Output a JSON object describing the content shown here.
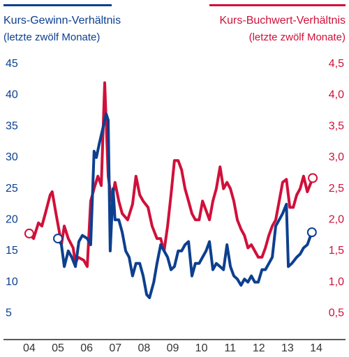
{
  "chart_data": {
    "type": "line",
    "xlim": [
      2003.48,
      2015.4
    ],
    "xticks": [
      {
        "value": 2004.5,
        "label": "04"
      },
      {
        "value": 2005.5,
        "label": "05"
      },
      {
        "value": 2006.5,
        "label": "06"
      },
      {
        "value": 2007.5,
        "label": "07"
      },
      {
        "value": 2008.5,
        "label": "08"
      },
      {
        "value": 2009.5,
        "label": "09"
      },
      {
        "value": 2010.5,
        "label": "10"
      },
      {
        "value": 2011.5,
        "label": "11"
      },
      {
        "value": 2012.5,
        "label": "12"
      },
      {
        "value": 2013.5,
        "label": "13"
      },
      {
        "value": 2014.5,
        "label": "14"
      }
    ],
    "ylim": [
      0,
      48
    ],
    "yticks": [
      5,
      10,
      15,
      20,
      25,
      30,
      35,
      40,
      45
    ],
    "y2lim": [
      0,
      4.8
    ],
    "y2ticks": [
      {
        "value": 0.5,
        "label": "0,5"
      },
      {
        "value": 1.0,
        "label": "1,0"
      },
      {
        "value": 1.5,
        "label": "1,5"
      },
      {
        "value": 2.0,
        "label": "2,0"
      },
      {
        "value": 2.5,
        "label": "2,5"
      },
      {
        "value": 3.0,
        "label": "3,0"
      },
      {
        "value": 3.5,
        "label": "3,5"
      },
      {
        "value": 4.0,
        "label": "4,0"
      },
      {
        "value": 4.5,
        "label": "4,5"
      }
    ],
    "series": [
      {
        "name": "Kurs-Gewinn-Verhältnis",
        "name_sub": "(letzte zwölf Monate)",
        "color": "#0d3f8f",
        "axis": "y",
        "x": [
          2005.5,
          2005.62,
          2005.72,
          2005.86,
          2005.98,
          2006.11,
          2006.23,
          2006.35,
          2006.52,
          2006.64,
          2006.76,
          2006.84,
          2006.93,
          2007.08,
          2007.18,
          2007.25,
          2007.32,
          2007.42,
          2007.49,
          2007.62,
          2007.74,
          2007.86,
          2007.98,
          2008.1,
          2008.22,
          2008.35,
          2008.47,
          2008.59,
          2008.69,
          2008.84,
          2008.95,
          2009.08,
          2009.2,
          2009.32,
          2009.44,
          2009.56,
          2009.69,
          2009.81,
          2009.93,
          2010.05,
          2010.17,
          2010.29,
          2010.42,
          2010.54,
          2010.66,
          2010.78,
          2010.9,
          2011.02,
          2011.15,
          2011.27,
          2011.39,
          2011.51,
          2011.63,
          2011.75,
          2011.88,
          2012.0,
          2012.12,
          2012.24,
          2012.36,
          2012.48,
          2012.61,
          2012.73,
          2012.85,
          2012.97,
          2013.09,
          2013.21,
          2013.33,
          2013.46,
          2013.53,
          2013.65,
          2013.82,
          2013.94,
          2014.06,
          2014.19,
          2014.35
        ],
        "values": [
          17,
          16,
          12.5,
          15,
          14,
          12.5,
          16.5,
          17.5,
          17,
          16,
          31,
          30,
          32,
          35,
          37,
          36,
          15,
          25,
          20,
          20,
          18,
          15,
          14,
          11,
          13,
          13,
          11,
          8,
          7.5,
          10,
          13,
          16,
          15,
          14,
          12,
          12.5,
          15,
          15,
          16,
          16.5,
          11,
          13,
          13,
          14,
          15,
          16.5,
          12,
          13,
          12.5,
          12,
          16,
          12.5,
          11,
          10.5,
          9.5,
          10.5,
          10,
          11,
          10,
          10,
          12,
          12,
          13,
          14,
          19,
          20,
          21,
          22.5,
          12.5,
          13,
          14,
          14.5,
          15.5,
          16,
          18
        ]
      },
      {
        "name": "Kurs-Buchwert-Verhältnis",
        "name_sub": "(letzte zwölf Monate)",
        "color": "#d0103a",
        "axis": "y2",
        "x": [
          2004.5,
          2004.65,
          2004.82,
          2004.94,
          2005.06,
          2005.23,
          2005.3,
          2005.43,
          2005.55,
          2005.62,
          2005.72,
          2005.86,
          2006.03,
          2006.11,
          2006.2,
          2006.4,
          2006.52,
          2006.64,
          2006.76,
          2006.89,
          2007.01,
          2007.13,
          2007.25,
          2007.37,
          2007.49,
          2007.62,
          2007.74,
          2007.93,
          2008.1,
          2008.22,
          2008.35,
          2008.47,
          2008.64,
          2008.78,
          2008.95,
          2009.08,
          2009.2,
          2009.32,
          2009.44,
          2009.56,
          2009.69,
          2009.81,
          2009.93,
          2010.05,
          2010.17,
          2010.29,
          2010.42,
          2010.54,
          2010.66,
          2010.78,
          2010.9,
          2011.02,
          2011.15,
          2011.27,
          2011.39,
          2011.51,
          2011.63,
          2011.75,
          2011.88,
          2012.0,
          2012.12,
          2012.24,
          2012.36,
          2012.48,
          2012.61,
          2012.73,
          2012.85,
          2012.97,
          2013.09,
          2013.21,
          2013.33,
          2013.46,
          2013.58,
          2013.7,
          2013.82,
          2013.94,
          2014.06,
          2014.19,
          2014.38
        ],
        "values": [
          1.78,
          1.7,
          1.95,
          1.9,
          2.1,
          2.4,
          2.45,
          2.1,
          1.8,
          1.6,
          1.9,
          1.7,
          1.55,
          1.3,
          1.4,
          1.35,
          1.25,
          2.3,
          2.5,
          2.7,
          2.55,
          4.2,
          2.7,
          2.3,
          2.6,
          2.3,
          2.1,
          2.0,
          2.25,
          2.7,
          2.4,
          2.3,
          2.2,
          1.9,
          1.7,
          1.7,
          1.5,
          1.9,
          2.4,
          2.95,
          2.95,
          2.8,
          2.5,
          2.3,
          2.1,
          2.0,
          2.0,
          2.3,
          2.15,
          2.0,
          2.3,
          2.5,
          2.85,
          2.5,
          2.6,
          2.5,
          2.3,
          2.0,
          1.85,
          1.75,
          1.55,
          1.6,
          1.5,
          1.4,
          1.4,
          1.55,
          1.75,
          1.9,
          2.0,
          2.3,
          2.6,
          2.65,
          2.2,
          2.2,
          2.4,
          2.5,
          2.7,
          2.45,
          2.67
        ]
      }
    ]
  }
}
